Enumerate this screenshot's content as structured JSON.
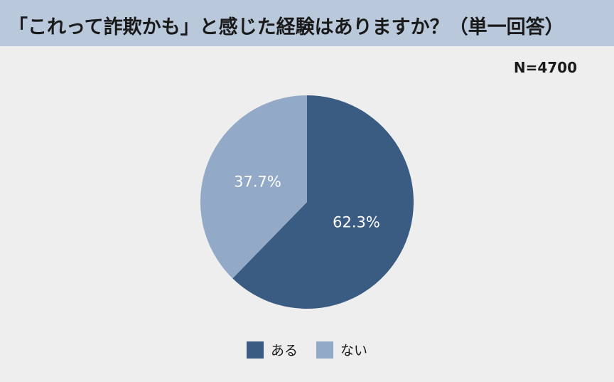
{
  "chart_data": {
    "type": "pie",
    "title": "「これって詐欺かも」と感じた経験はありますか？（単一回答）",
    "sample_size": "N=4700",
    "series": [
      {
        "name": "ある",
        "value": 62.3,
        "label": "62.3%",
        "color": "#3a5c82"
      },
      {
        "name": "ない",
        "value": 37.7,
        "label": "37.7%",
        "color": "#92a9c8"
      }
    ],
    "start_angle_deg": 0,
    "direction": "clockwise",
    "legend_position": "bottom"
  },
  "colors": {
    "header_background": "#b9c8db",
    "page_background": "#eeeeee"
  }
}
